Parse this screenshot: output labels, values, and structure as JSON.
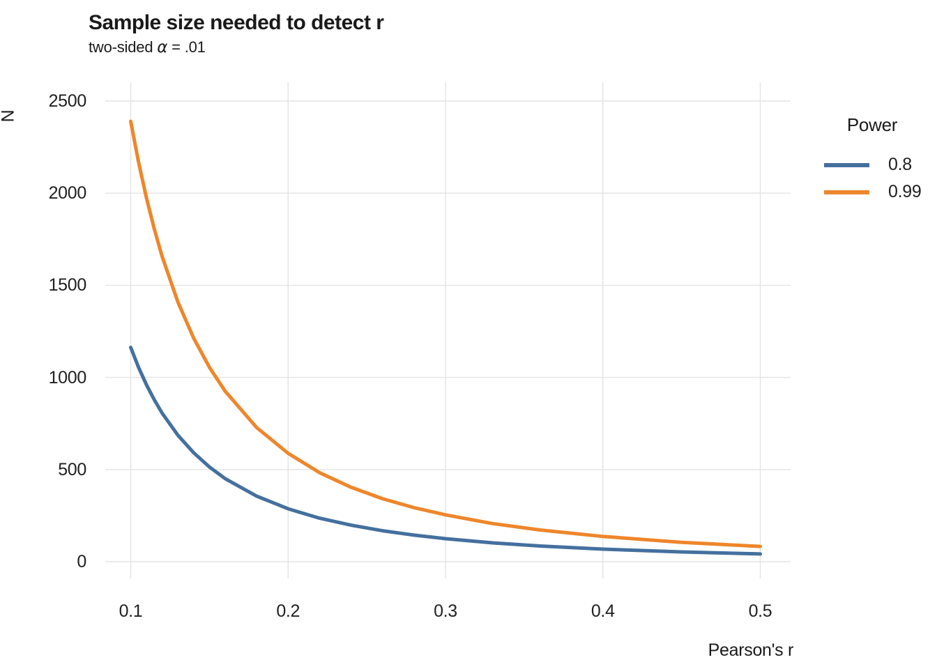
{
  "figure": {
    "title": "Sample size needed to detect r",
    "subtitle_prefix": "two-sided ",
    "subtitle_alpha": "α",
    "subtitle_suffix": " = .01"
  },
  "axes": {
    "x_title": "Pearson's r",
    "y_title": "N",
    "x_tick_labels": [
      "0.1",
      "0.2",
      "0.3",
      "0.4",
      "0.5"
    ],
    "y_tick_labels": [
      "0",
      "500",
      "1000",
      "1500",
      "2000",
      "2500"
    ]
  },
  "legend": {
    "title": "Power",
    "entries": [
      {
        "label": "0.8",
        "color": "#44709E"
      },
      {
        "label": "0.99",
        "color": "#EE862B"
      }
    ]
  },
  "colors": {
    "series_power_08": "#44709E",
    "series_power_099": "#EE862B",
    "gridline": "#E3E3E3",
    "text": "#1A1A1A",
    "background": "#FFFFFF"
  },
  "chart_data": {
    "type": "line",
    "title": "Sample size needed to detect r",
    "subtitle": "two-sided α = .01",
    "xlabel": "Pearson's r",
    "ylabel": "N",
    "xlim": [
      0.1,
      0.5
    ],
    "ylim": [
      0,
      2500
    ],
    "x_ticks": [
      0.1,
      0.2,
      0.3,
      0.4,
      0.5
    ],
    "y_ticks": [
      0,
      500,
      1000,
      1500,
      2000,
      2500
    ],
    "grid": true,
    "legend_position": "right",
    "legend_title": "Power",
    "x": [
      0.1,
      0.105,
      0.11,
      0.115,
      0.12,
      0.13,
      0.14,
      0.15,
      0.16,
      0.18,
      0.2,
      0.22,
      0.24,
      0.26,
      0.28,
      0.3,
      0.33,
      0.36,
      0.4,
      0.45,
      0.5
    ],
    "series": [
      {
        "name": "0.8",
        "color": "#44709E",
        "values": [
          1163,
          1054,
          960,
          878,
          806,
          686,
          591,
          514,
          451,
          356,
          287,
          236,
          198,
          168,
          144,
          125,
          102,
          85,
          68,
          53,
          42
        ]
      },
      {
        "name": "0.99",
        "color": "#EE862B",
        "values": [
          2390,
          2167,
          1973,
          1804,
          1656,
          1409,
          1213,
          1055,
          926,
          728,
          588,
          483,
          404,
          342,
          293,
          254,
          207,
          172,
          137,
          105,
          83
        ]
      }
    ]
  }
}
